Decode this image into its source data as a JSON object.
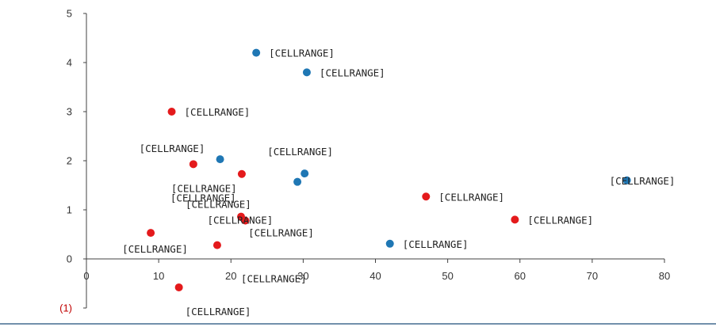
{
  "chart_data": {
    "type": "scatter",
    "title": "",
    "xlabel": "",
    "ylabel": "",
    "xlim": [
      0,
      80
    ],
    "ylim": [
      -1,
      5
    ],
    "x_ticks": [
      0,
      10,
      20,
      30,
      40,
      50,
      60,
      70,
      80
    ],
    "x_tick_labels": [
      "0",
      "10",
      "20",
      "30",
      "40",
      "50",
      "60",
      "70",
      "80"
    ],
    "y_ticks": [
      -1,
      0,
      1,
      2,
      3,
      4,
      5
    ],
    "y_tick_labels": [
      "(1)",
      "0",
      "1",
      "2",
      "3",
      "4",
      "5"
    ],
    "grid": false,
    "legend": "none",
    "point_label_text": "[CELLRANGE]",
    "series": [
      {
        "color": "#1f77b4",
        "points": [
          {
            "x": 23.5,
            "y": 4.2,
            "label": "[CELLRANGE]",
            "label_pos": "right"
          },
          {
            "x": 30.5,
            "y": 3.8,
            "label": "[CELLRANGE]",
            "label_pos": "right"
          },
          {
            "x": 18.5,
            "y": 2.03,
            "label": "[CELLRANGE]",
            "label_pos": "above-left"
          },
          {
            "x": 30.2,
            "y": 1.74,
            "label": "[CELLRANGE]",
            "label_pos": "above-left"
          },
          {
            "x": 29.2,
            "y": 1.57,
            "label": "[CELLRANGE]",
            "label_pos": "above-right"
          },
          {
            "x": 74.8,
            "y": 1.6,
            "label": "[CELLRANGE]",
            "label_pos": "center"
          },
          {
            "x": 42.0,
            "y": 0.31,
            "label": "[CELLRANGE]",
            "label_pos": "right"
          }
        ]
      },
      {
        "color": "#e41a1c",
        "points": [
          {
            "x": 11.8,
            "y": 3.0,
            "label": "[CELLRANGE]",
            "label_pos": "right"
          },
          {
            "x": 14.8,
            "y": 1.93,
            "label": "[CELLRANGE]",
            "label_pos": "below-right"
          },
          {
            "x": 21.5,
            "y": 1.73,
            "label": "[CELLRANGE]",
            "label_pos": "below-left"
          },
          {
            "x": 47.0,
            "y": 1.27,
            "label": "[CELLRANGE]",
            "label_pos": "right"
          },
          {
            "x": 21.4,
            "y": 0.86,
            "label": "[CELLRANGE]",
            "label_pos": "above-right"
          },
          {
            "x": 22.0,
            "y": 0.78,
            "label": "[CELLRANGE]",
            "label_pos": "below-right"
          },
          {
            "x": 59.3,
            "y": 0.8,
            "label": "[CELLRANGE]",
            "label_pos": "right"
          },
          {
            "x": 8.9,
            "y": 0.53,
            "label": "[CELLRANGE]",
            "label_pos": "below"
          },
          {
            "x": 18.1,
            "y": 0.28,
            "label": "[CELLRANGE]",
            "label_pos": "below-right"
          },
          {
            "x": 12.8,
            "y": -0.58,
            "label": "[CELLRANGE]",
            "label_pos": "below-right"
          }
        ]
      }
    ]
  }
}
